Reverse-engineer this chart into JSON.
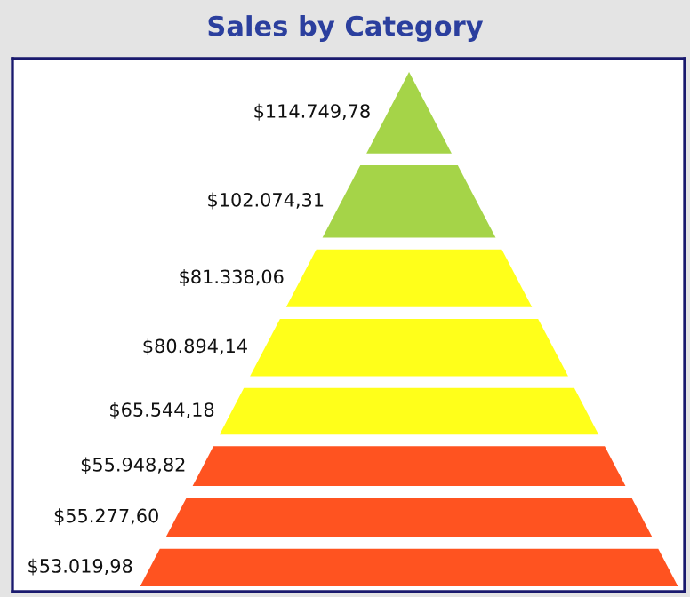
{
  "chart_data": {
    "type": "other",
    "title": "Sales by Category",
    "categories": [
      null,
      null,
      null,
      null,
      null,
      null,
      null,
      null
    ],
    "values": [
      114749.78,
      102074.31,
      81338.06,
      80894.14,
      65544.18,
      55948.82,
      55277.6,
      53019.98
    ],
    "value_labels": [
      "$114.749,78",
      "$102.074,31",
      "$81.338,06",
      "$80.894,14",
      "$65.544,18",
      "$55.948,82",
      "$55.277,60",
      "$53.019,98"
    ],
    "colors": [
      "#a5d448",
      "#a5d448",
      "#ffff1a",
      "#ffff1a",
      "#ffff1a",
      "#ff5320",
      "#ff5320",
      "#ff5320"
    ]
  }
}
